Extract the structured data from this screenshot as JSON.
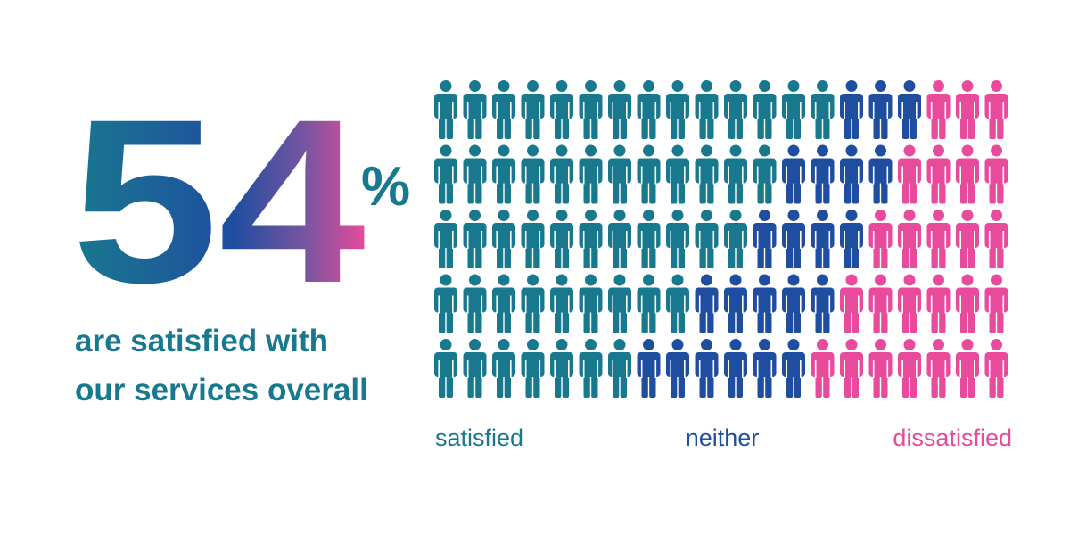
{
  "chart_data": {
    "type": "pictogram",
    "headline": {
      "number": 54,
      "unit": "%"
    },
    "caption": [
      "are satisfied with",
      "our services overall"
    ],
    "series": [
      {
        "name": "satisfied",
        "color": "#18788e",
        "values": [
          14,
          12,
          11,
          9,
          7
        ]
      },
      {
        "name": "neither",
        "color": "#1f4ea0",
        "values": [
          3,
          4,
          4,
          5,
          6
        ]
      },
      {
        "name": "dissatisfied",
        "color": "#e84b9b",
        "values": [
          3,
          4,
          5,
          6,
          7
        ]
      }
    ]
  }
}
